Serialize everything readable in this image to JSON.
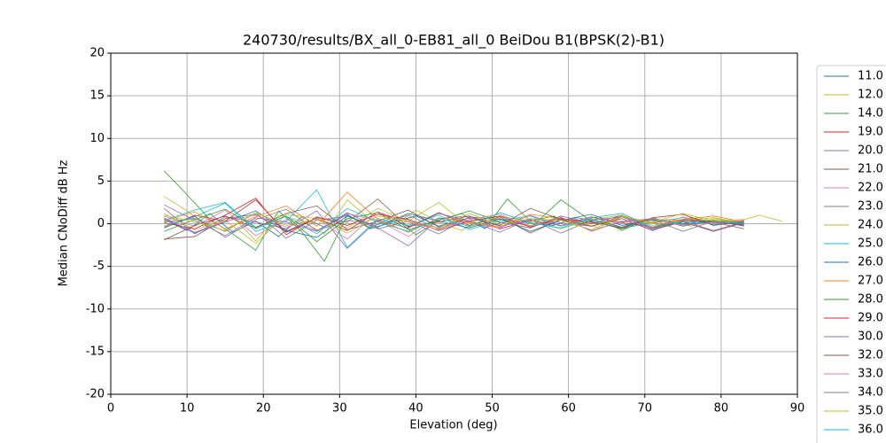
{
  "chart_data": {
    "type": "line",
    "title": "240730/results/BX_all_0-EB81_all_0 BeiDou B1(BPSK(2)-B1)",
    "x_label": "Elevation (deg)",
    "y_label": "Median CNoDiff dB Hz",
    "xlim": [
      0,
      90
    ],
    "xticks": [
      0,
      10,
      20,
      30,
      40,
      50,
      60,
      70,
      80,
      90
    ],
    "ylim": [
      -20,
      20
    ],
    "yticks": [
      -20,
      -15,
      -10,
      -5,
      0,
      5,
      10,
      15,
      20
    ],
    "grid": true,
    "legend": "outside-right",
    "series": [
      {
        "name": "11.0",
        "color": "#1f77b4",
        "x": [
          7,
          10,
          13,
          16,
          19,
          22,
          25,
          28,
          31,
          34,
          37,
          40,
          43,
          46,
          49,
          52,
          55,
          58,
          61,
          64,
          67,
          70,
          73,
          76,
          79
        ],
        "values": [
          0.5,
          -0.8,
          1.2,
          -1.0,
          0.3,
          -1.5,
          0.8,
          -0.4,
          1.1,
          -0.6,
          0.2,
          0.9,
          -0.3,
          0.6,
          -0.5,
          0.4,
          0.1,
          -0.2,
          0.7,
          0.3,
          -0.4,
          0.5,
          0.2,
          -0.1,
          0.3
        ]
      },
      {
        "name": "12.0",
        "color": "#bcbd22",
        "x": [
          7,
          10,
          13,
          16,
          19,
          22,
          25,
          28,
          31,
          34,
          37,
          40,
          43,
          46,
          49,
          52,
          55,
          58,
          61,
          64,
          67,
          70,
          73,
          76,
          79,
          82,
          85,
          88
        ],
        "values": [
          3.2,
          1.5,
          -0.5,
          0.8,
          -2.0,
          1.0,
          0.3,
          -1.2,
          2.8,
          0.5,
          -0.3,
          1.6,
          0.2,
          -0.8,
          0.9,
          0.4,
          -0.2,
          0.6,
          0.3,
          -0.5,
          0.8,
          0.1,
          0.5,
          -0.3,
          0.6,
          0.2,
          1.0,
          0.3
        ]
      },
      {
        "name": "14.0",
        "color": "#2ca02c",
        "x": [
          7,
          10,
          13,
          16,
          19,
          22,
          25,
          28,
          31,
          34,
          37,
          40,
          43,
          46,
          49,
          52,
          55,
          58,
          61,
          64,
          67,
          70,
          73,
          76,
          79
        ],
        "values": [
          6.2,
          3.4,
          0.5,
          -1.2,
          -3.1,
          1.5,
          -0.9,
          -4.4,
          1.0,
          -0.5,
          0.8,
          -1.3,
          0.4,
          1.2,
          -0.6,
          2.9,
          0.3,
          0.9,
          -0.2,
          0.6,
          -0.8,
          0.4,
          -0.3,
          0.7,
          0.2
        ]
      },
      {
        "name": "19.0",
        "color": "#d62728",
        "x": [
          7,
          11,
          15,
          19,
          23,
          27,
          31,
          35,
          39,
          43,
          47,
          51,
          55,
          59,
          63,
          67,
          71,
          75,
          79,
          83
        ],
        "values": [
          -0.5,
          1.0,
          0.3,
          2.8,
          -1.0,
          0.6,
          -0.8,
          1.4,
          -0.3,
          0.2,
          0.9,
          -0.6,
          0.4,
          -0.2,
          0.8,
          0.1,
          -0.4,
          0.5,
          0.2,
          -0.1
        ]
      },
      {
        "name": "20.0",
        "color": "#9467bd",
        "x": [
          7,
          11,
          15,
          19,
          23,
          27,
          31,
          35,
          39,
          43,
          47,
          51,
          55,
          59,
          63,
          67,
          71,
          75,
          79,
          83
        ],
        "values": [
          1.8,
          -1.2,
          0.8,
          0.2,
          -0.6,
          1.5,
          -2.9,
          0.4,
          -0.5,
          1.2,
          0.3,
          -1.0,
          0.6,
          0.1,
          -0.3,
          0.9,
          -0.7,
          0.2,
          0.4,
          0.0
        ]
      },
      {
        "name": "21.0",
        "color": "#8c564b",
        "x": [
          7,
          11,
          15,
          19,
          23,
          27,
          31,
          35,
          39,
          43,
          47,
          51,
          55,
          59,
          63,
          67,
          71,
          75,
          79,
          83
        ],
        "values": [
          -1.8,
          -1.5,
          0.6,
          1.1,
          -0.9,
          0.7,
          0.2,
          2.9,
          -0.4,
          1.3,
          -0.2,
          0.8,
          -1.1,
          0.5,
          0.0,
          1.0,
          -0.5,
          0.3,
          -0.8,
          0.2
        ]
      },
      {
        "name": "22.0",
        "color": "#e377c2",
        "x": [
          7,
          11,
          15,
          19,
          23,
          27,
          31,
          35,
          39,
          43,
          47,
          51,
          55,
          59,
          63,
          67,
          71,
          75,
          79,
          83
        ],
        "values": [
          0.9,
          -0.3,
          1.6,
          -1.4,
          0.5,
          -0.8,
          1.2,
          0.4,
          -1.5,
          0.7,
          0.1,
          -0.5,
          1.0,
          -0.2,
          0.6,
          0.3,
          -0.4,
          0.8,
          0.0,
          0.3
        ]
      },
      {
        "name": "23.0",
        "color": "#7f7f7f",
        "x": [
          7,
          11,
          15,
          19,
          23,
          27,
          31,
          35,
          39,
          43,
          47,
          51,
          55,
          59,
          63,
          67,
          71,
          75,
          79,
          83
        ],
        "values": [
          0.2,
          0.6,
          -0.9,
          1.3,
          -1.7,
          0.4,
          0.9,
          -0.6,
          0.3,
          -1.2,
          0.8,
          0.5,
          -0.3,
          0.7,
          -0.8,
          0.2,
          0.6,
          -0.1,
          0.4,
          -0.3
        ]
      },
      {
        "name": "24.0",
        "color": "#bcbd22",
        "x": [
          7,
          11,
          15,
          19,
          23,
          27,
          31,
          35,
          39,
          43,
          47,
          51,
          55,
          59,
          63,
          67,
          71,
          75,
          79,
          83
        ],
        "values": [
          1.2,
          -0.7,
          0.4,
          -2.3,
          1.1,
          0.6,
          -0.5,
          1.8,
          0.3,
          2.5,
          -0.4,
          0.9,
          0.2,
          -0.6,
          0.5,
          1.0,
          -0.2,
          0.4,
          0.7,
          0.1
        ]
      },
      {
        "name": "25.0",
        "color": "#17becf",
        "x": [
          7,
          11,
          15,
          19,
          23,
          27,
          31,
          35,
          39,
          43,
          47,
          51,
          55,
          59,
          63,
          67,
          71,
          75,
          79,
          83
        ],
        "values": [
          -0.4,
          0.8,
          2.4,
          -0.9,
          0.3,
          4.0,
          -2.8,
          0.6,
          -0.2,
          1.0,
          -0.7,
          0.4,
          0.9,
          -0.3,
          0.5,
          -0.6,
          0.2,
          0.7,
          -0.1,
          0.3
        ]
      },
      {
        "name": "26.0",
        "color": "#1f77b4",
        "x": [
          7,
          11,
          15,
          19,
          23,
          27,
          31,
          35,
          39,
          43,
          47,
          51,
          55,
          59,
          63,
          67,
          71,
          75,
          79,
          83
        ],
        "values": [
          0.6,
          -1.1,
          0.2,
          1.5,
          -0.8,
          -1.6,
          0.9,
          -0.4,
          1.2,
          0.3,
          -0.5,
          0.6,
          -0.9,
          0.4,
          1.1,
          -0.2,
          0.5,
          0.0,
          0.3,
          -0.2
        ]
      },
      {
        "name": "27.0",
        "color": "#ff7f0e",
        "x": [
          7,
          11,
          15,
          19,
          23,
          27,
          31,
          35,
          39,
          43,
          47,
          51,
          55,
          59,
          63,
          67,
          71,
          75,
          79,
          83
        ],
        "values": [
          0.3,
          1.4,
          -0.6,
          0.8,
          2.1,
          -0.3,
          3.7,
          0.5,
          -1.0,
          0.7,
          0.2,
          -0.4,
          1.1,
          0.6,
          -0.3,
          0.8,
          0.1,
          0.5,
          0.9,
          0.2
        ]
      },
      {
        "name": "28.0",
        "color": "#2ca02c",
        "x": [
          7,
          11,
          15,
          19,
          23,
          27,
          31,
          35,
          39,
          43,
          47,
          51,
          55,
          59,
          63,
          67,
          71,
          75,
          79,
          83
        ],
        "values": [
          -0.9,
          0.5,
          1.7,
          -0.4,
          0.9,
          -2.1,
          0.6,
          1.3,
          -0.7,
          0.4,
          1.5,
          0.2,
          -0.5,
          2.8,
          0.3,
          -0.6,
          0.7,
          -0.3,
          0.4,
          0.1
        ]
      },
      {
        "name": "29.0",
        "color": "#d62728",
        "x": [
          7,
          11,
          15,
          19,
          23,
          27,
          31,
          35,
          39,
          43,
          47,
          51,
          55,
          59,
          63,
          67,
          71,
          75,
          79,
          83
        ],
        "values": [
          0.1,
          -0.6,
          1.0,
          3.0,
          -1.3,
          0.8,
          -0.2,
          1.1,
          0.5,
          -0.8,
          0.3,
          0.9,
          -0.4,
          0.6,
          0.2,
          -0.5,
          0.7,
          1.1,
          -0.2,
          0.3
        ]
      },
      {
        "name": "30.0",
        "color": "#9467bd",
        "x": [
          7,
          11,
          15,
          19,
          23,
          27,
          31,
          35,
          39,
          43,
          47,
          51,
          55,
          59,
          63,
          67,
          71,
          75,
          79,
          83
        ],
        "values": [
          2.2,
          0.4,
          -1.4,
          0.7,
          0.2,
          -0.9,
          1.3,
          -0.5,
          -2.6,
          0.6,
          0.9,
          -0.3,
          0.5,
          -1.1,
          0.4,
          0.8,
          -0.6,
          0.2,
          -0.9,
          0.1
        ]
      },
      {
        "name": "32.0",
        "color": "#8c564b",
        "x": [
          7,
          11,
          15,
          19,
          23,
          27,
          31,
          35,
          39,
          43,
          47,
          51,
          55,
          59,
          63,
          67,
          71,
          75,
          79,
          83
        ],
        "values": [
          -1.9,
          -0.2,
          0.9,
          -0.5,
          1.2,
          2.1,
          -0.7,
          0.3,
          1.6,
          -0.4,
          0.7,
          -0.2,
          1.8,
          0.5,
          -0.3,
          0.6,
          -0.8,
          0.4,
          0.2,
          -0.6
        ]
      },
      {
        "name": "33.0",
        "color": "#e377c2",
        "x": [
          7,
          11,
          15,
          19,
          23,
          27,
          31,
          35,
          39,
          43,
          47,
          51,
          55,
          59,
          63,
          67,
          71,
          75,
          79,
          83
        ],
        "values": [
          0.7,
          -1.0,
          0.3,
          1.0,
          -0.4,
          0.6,
          -1.8,
          1.4,
          0.2,
          -0.7,
          0.5,
          1.1,
          -0.3,
          0.8,
          -0.9,
          0.3,
          0.6,
          -0.2,
          0.1,
          0.4
        ]
      },
      {
        "name": "34.0",
        "color": "#7f7f7f",
        "x": [
          7,
          11,
          15,
          19,
          23,
          27,
          31,
          35,
          39,
          43,
          47,
          51,
          55,
          59,
          63,
          67,
          71,
          75,
          79,
          83
        ],
        "values": [
          -0.3,
          0.9,
          -1.6,
          0.5,
          1.7,
          -0.8,
          0.4,
          -0.1,
          1.0,
          -0.6,
          0.7,
          0.2,
          -0.5,
          0.9,
          0.1,
          -0.4,
          0.5,
          -0.9,
          0.3,
          0.0
        ]
      },
      {
        "name": "35.0",
        "color": "#bcbd22",
        "x": [
          7,
          11,
          15,
          19,
          23,
          27,
          31,
          35,
          39,
          43,
          47,
          51,
          55,
          59,
          63,
          67,
          71,
          75,
          79,
          83
        ],
        "values": [
          1.0,
          0.2,
          -0.8,
          1.3,
          -0.2,
          0.5,
          -1.1,
          0.9,
          0.3,
          -0.5,
          1.2,
          -0.1,
          0.6,
          0.4,
          -0.7,
          0.8,
          0.2,
          1.2,
          0.3,
          0.5
        ]
      },
      {
        "name": "36.0",
        "color": "#17becf",
        "x": [
          7,
          11,
          15,
          19,
          23,
          27,
          31,
          35,
          39,
          43,
          47,
          51,
          55,
          59,
          63,
          67,
          71,
          75,
          79,
          83
        ],
        "values": [
          0.4,
          1.6,
          2.5,
          -0.6,
          0.9,
          -1.2,
          1.8,
          0.2,
          -0.9,
          0.6,
          -0.3,
          1.3,
          0.1,
          -0.5,
          0.7,
          1.2,
          -0.4,
          0.3,
          0.0,
          0.2
        ]
      }
    ]
  }
}
